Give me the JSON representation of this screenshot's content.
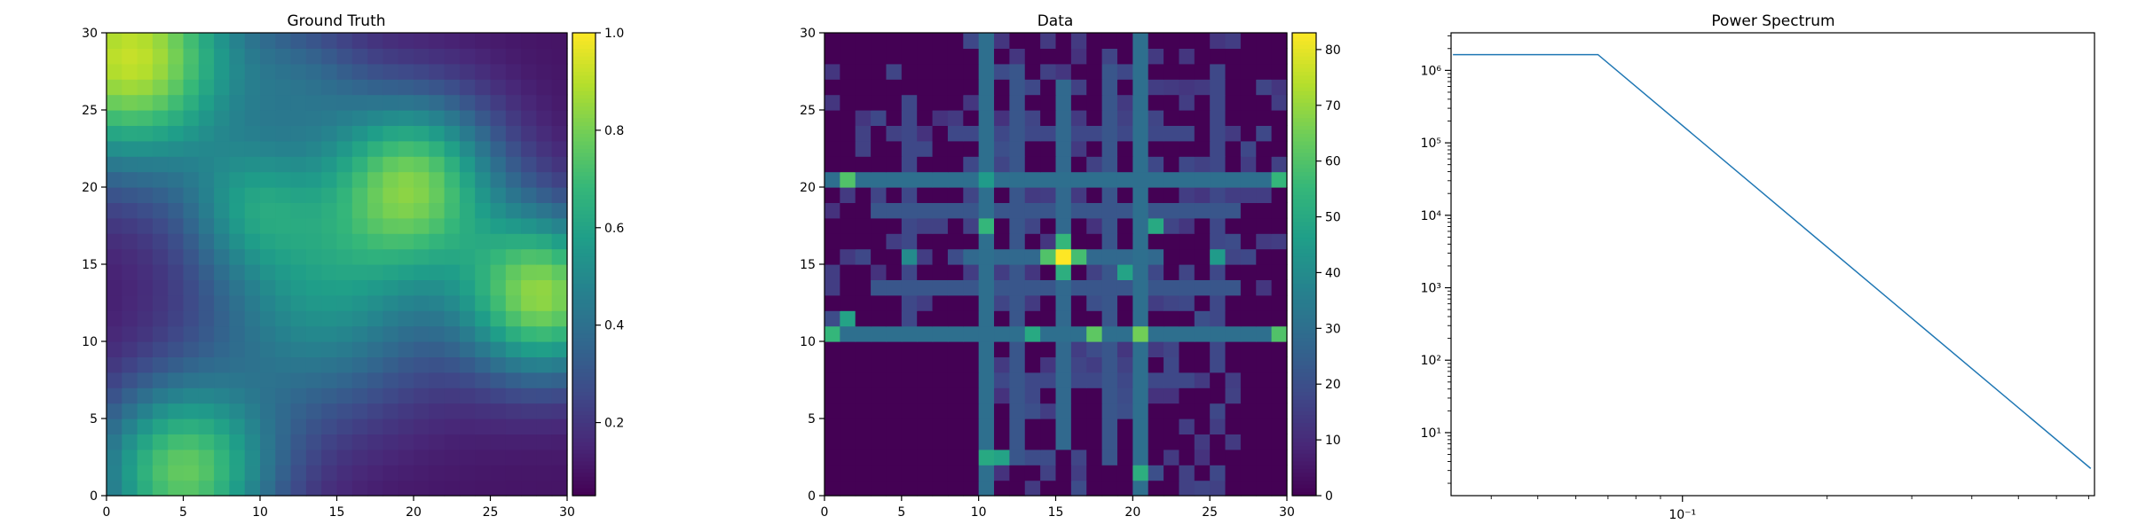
{
  "chart_data": [
    {
      "type": "heatmap",
      "title": "Ground Truth",
      "xlim": [
        0,
        30
      ],
      "ylim": [
        0,
        30
      ],
      "xticks": [
        "0",
        "5",
        "10",
        "15",
        "20",
        "25",
        "30"
      ],
      "yticks": [
        "0",
        "5",
        "10",
        "15",
        "20",
        "25",
        "30"
      ],
      "grid_size": [
        30,
        30
      ],
      "colormap": "viridis",
      "colorbar": {
        "min": 0.05,
        "max": 1.0,
        "ticks": [
          "0.2",
          "0.4",
          "0.6",
          "0.8",
          "1.0"
        ]
      },
      "field_components": [
        {
          "cx": 20,
          "cy": 20.5,
          "amp": 0.62,
          "sigma": 4
        },
        {
          "cx": 28.5,
          "cy": 13,
          "amp": 0.72,
          "sigma": 3.8
        },
        {
          "cx": 1.5,
          "cy": 28.5,
          "amp": 0.82,
          "sigma": 5.2
        },
        {
          "cx": 5,
          "cy": 1.5,
          "amp": 0.66,
          "sigma": 4.2
        },
        {
          "cx": 14,
          "cy": 13,
          "amp": 0.42,
          "sigma": 5.5
        },
        {
          "cx": 9.5,
          "cy": 19,
          "amp": 0.28,
          "sigma": 3
        },
        {
          "cx": 13,
          "cy": 27,
          "amp": 0.18,
          "sigma": 3
        }
      ],
      "field_base": 0.1
    },
    {
      "type": "heatmap",
      "title": "Data",
      "xlim": [
        0,
        30
      ],
      "ylim": [
        0,
        30
      ],
      "xticks": [
        "0",
        "5",
        "10",
        "15",
        "20",
        "25",
        "30"
      ],
      "yticks": [
        "0",
        "5",
        "10",
        "15",
        "20",
        "25",
        "30"
      ],
      "grid_size": [
        30,
        30
      ],
      "colormap": "viridis",
      "colorbar": {
        "min": 0,
        "max": 83,
        "ticks": [
          "0",
          "10",
          "20",
          "30",
          "40",
          "50",
          "60",
          "70",
          "80"
        ]
      },
      "row_lines": [
        {
          "row": 20,
          "from": 0,
          "to": 30,
          "value": 30
        },
        {
          "row": 10,
          "from": 0,
          "to": 30,
          "value": 30
        },
        {
          "row": 15,
          "from": 9,
          "to": 22,
          "value": 28
        },
        {
          "row": 18,
          "from": 3,
          "to": 27,
          "value": 22
        },
        {
          "row": 13,
          "from": 3,
          "to": 27,
          "value": 22
        },
        {
          "row": 23,
          "from": 8,
          "to": 24,
          "value": 18
        },
        {
          "row": 7,
          "from": 10,
          "to": 24,
          "value": 18
        }
      ],
      "col_lines": [
        {
          "col": 10,
          "from": 0,
          "to": 30,
          "value": 30
        },
        {
          "col": 20,
          "from": 0,
          "to": 30,
          "value": 30
        },
        {
          "col": 15,
          "from": 3,
          "to": 27,
          "value": 28
        },
        {
          "col": 12,
          "from": 2,
          "to": 28,
          "value": 22
        },
        {
          "col": 18,
          "from": 2,
          "to": 28,
          "value": 22
        },
        {
          "col": 25,
          "from": 8,
          "to": 28,
          "value": 18
        },
        {
          "col": 5,
          "from": 11,
          "to": 26,
          "value": 18
        }
      ],
      "hot_cells": [
        {
          "col": 15,
          "row": 15,
          "value": 83
        },
        {
          "col": 14,
          "row": 15,
          "value": 60
        },
        {
          "col": 16,
          "row": 15,
          "value": 58
        },
        {
          "col": 15,
          "row": 16,
          "value": 55
        },
        {
          "col": 15,
          "row": 14,
          "value": 52
        },
        {
          "col": 1,
          "row": 20,
          "value": 60
        },
        {
          "col": 0,
          "row": 10,
          "value": 55
        },
        {
          "col": 1,
          "row": 11,
          "value": 48
        },
        {
          "col": 17,
          "row": 10,
          "value": 62
        },
        {
          "col": 20,
          "row": 10,
          "value": 65
        },
        {
          "col": 10,
          "row": 17,
          "value": 55
        },
        {
          "col": 10,
          "row": 20,
          "value": 45
        },
        {
          "col": 10,
          "row": 2,
          "value": 50
        },
        {
          "col": 11,
          "row": 2,
          "value": 48
        },
        {
          "col": 20,
          "row": 1,
          "value": 52
        },
        {
          "col": 29,
          "row": 10,
          "value": 60
        },
        {
          "col": 29,
          "row": 20,
          "value": 55
        },
        {
          "col": 21,
          "row": 17,
          "value": 50
        },
        {
          "col": 13,
          "row": 10,
          "value": 50
        },
        {
          "col": 5,
          "row": 15,
          "value": 40
        },
        {
          "col": 25,
          "row": 15,
          "value": 45
        },
        {
          "col": 19,
          "row": 14,
          "value": 48
        }
      ],
      "scatter_fill_value": 12
    },
    {
      "type": "line",
      "title": "Power Spectrum",
      "xscale": "log",
      "yscale": "log",
      "xlim": [
        0.033,
        0.72
      ],
      "ylim": [
        1.35,
        3300000
      ],
      "series": [
        {
          "x": [
            0.0333,
            0.0667,
            0.7071
          ],
          "y": [
            1650000,
            1650000,
            3.2
          ]
        }
      ],
      "x_major_ticks": [
        {
          "value": 0.1,
          "label": "10⁻¹"
        }
      ],
      "y_major_ticks": [
        {
          "value": 10,
          "label": "10¹"
        },
        {
          "value": 100,
          "label": "10²"
        },
        {
          "value": 1000,
          "label": "10³"
        },
        {
          "value": 10000,
          "label": "10⁴"
        },
        {
          "value": 100000,
          "label": "10⁵"
        },
        {
          "value": 1000000,
          "label": "10⁶"
        }
      ],
      "line_color": "#1f77b4"
    }
  ]
}
